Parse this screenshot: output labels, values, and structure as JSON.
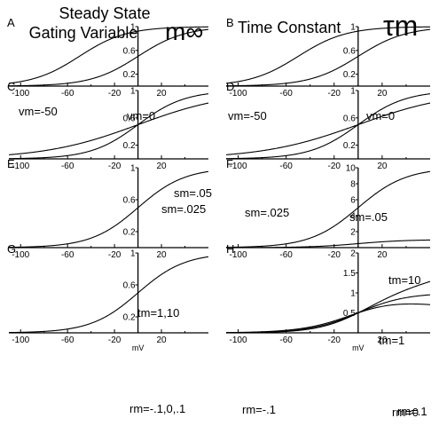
{
  "headers": {
    "left_title_line1": "Steady State",
    "left_title_line2": "Gating Variable",
    "left_symbol": "m∞",
    "right_title": "Time Constant",
    "right_symbol": "τm"
  },
  "x_unit": "mV",
  "chart_data": [
    {
      "panel": "A",
      "type": "line",
      "quantity": "m_inf",
      "xlim": [
        -110,
        60
      ],
      "ylim": [
        0,
        1
      ],
      "xticks": [
        -100,
        -60,
        -20,
        20
      ],
      "yticks": [
        0.2,
        0.6,
        1
      ],
      "ytick_labels": [
        "0.2",
        "0.6",
        "1"
      ],
      "series": [
        {
          "name": "vm=-50",
          "vm": -50,
          "sm": 0.05
        },
        {
          "name": "vm=0",
          "vm": 0,
          "sm": 0.05
        }
      ],
      "labels": [
        {
          "text": "vm=-50"
        },
        {
          "text": "vm=0"
        }
      ]
    },
    {
      "panel": "B",
      "type": "line",
      "quantity": "tau_m",
      "xlim": [
        -110,
        60
      ],
      "ylim": [
        0,
        1
      ],
      "xticks": [
        -100,
        -60,
        -20,
        20
      ],
      "yticks": [
        0.2,
        0.6,
        1
      ],
      "ytick_labels": [
        "0.2",
        "0.6",
        "1"
      ],
      "series": [
        {
          "name": "vm=-50",
          "vm": -50,
          "sm": 0.05,
          "tm": 1,
          "rm": 0
        },
        {
          "name": "vm=0",
          "vm": 0,
          "sm": 0.05,
          "tm": 1,
          "rm": 0
        }
      ],
      "labels": [
        {
          "text": "vm=-50"
        },
        {
          "text": "vm=0"
        }
      ]
    },
    {
      "panel": "C",
      "type": "line",
      "quantity": "m_inf",
      "xlim": [
        -110,
        60
      ],
      "ylim": [
        0,
        1
      ],
      "xticks": [
        -100,
        -60,
        -20,
        20
      ],
      "yticks": [
        0.2,
        0.6,
        1
      ],
      "ytick_labels": [
        "0.2",
        "0.6",
        "1"
      ],
      "series": [
        {
          "name": "sm=.05",
          "vm": 0,
          "sm": 0.05
        },
        {
          "name": "sm=.025",
          "vm": 0,
          "sm": 0.025
        }
      ],
      "labels": [
        {
          "text": "sm=.05"
        },
        {
          "text": "sm=.025"
        }
      ]
    },
    {
      "panel": "D",
      "type": "line",
      "quantity": "tau_m",
      "xlim": [
        -110,
        60
      ],
      "ylim": [
        0,
        1
      ],
      "xticks": [
        -100,
        -60,
        -20,
        20
      ],
      "yticks": [
        0.2,
        0.6,
        1
      ],
      "ytick_labels": [
        "0.2",
        "0.6",
        "1"
      ],
      "series": [
        {
          "name": "sm=.025",
          "vm": 0,
          "sm": 0.025,
          "tm": 1,
          "rm": 0
        },
        {
          "name": "sm=.05",
          "vm": 0,
          "sm": 0.05,
          "tm": 1,
          "rm": 0
        }
      ],
      "labels": [
        {
          "text": "sm=.025"
        },
        {
          "text": "sm=.05"
        }
      ]
    },
    {
      "panel": "E",
      "type": "line",
      "quantity": "m_inf",
      "xlim": [
        -110,
        60
      ],
      "ylim": [
        0,
        1
      ],
      "xticks": [
        -100,
        -60,
        -20,
        20
      ],
      "yticks": [
        0.2,
        0.6,
        1
      ],
      "ytick_labels": [
        "0.2",
        "0.6",
        "1"
      ],
      "series": [
        {
          "name": "tm=1,10",
          "vm": 0,
          "sm": 0.05
        }
      ],
      "labels": [
        {
          "text": "tm=1,10"
        }
      ]
    },
    {
      "panel": "F",
      "type": "line",
      "quantity": "tau_m",
      "xlim": [
        -110,
        60
      ],
      "ylim": [
        0,
        10
      ],
      "xticks": [
        -100,
        -60,
        -20,
        20
      ],
      "yticks": [
        2,
        4,
        6,
        8,
        10
      ],
      "ytick_labels": [
        "2",
        "4",
        "6",
        "8",
        "10"
      ],
      "series": [
        {
          "name": "tm=10",
          "vm": 0,
          "sm": 0.05,
          "tm": 10,
          "rm": 0
        },
        {
          "name": "tm=1",
          "vm": 0,
          "sm": 0.05,
          "tm": 1,
          "rm": 0
        }
      ],
      "labels": [
        {
          "text": "tm=10"
        },
        {
          "text": "tm=1"
        }
      ]
    },
    {
      "panel": "G",
      "type": "line",
      "quantity": "m_inf",
      "xlim": [
        -110,
        60
      ],
      "ylim": [
        0,
        1
      ],
      "xticks": [
        -100,
        -60,
        -20,
        20
      ],
      "yticks": [
        0.2,
        0.6,
        1
      ],
      "ytick_labels": [
        "0.2",
        "0.6",
        "1"
      ],
      "xlabel": "mV",
      "series": [
        {
          "name": "rm=-.1,0,.1",
          "vm": 0,
          "sm": 0.05
        }
      ],
      "labels": [
        {
          "text": "rm=-.1,0,.1"
        }
      ]
    },
    {
      "panel": "H",
      "type": "line",
      "quantity": "tau_m",
      "xlim": [
        -110,
        60
      ],
      "ylim": [
        0,
        2
      ],
      "xticks": [
        -100,
        -60,
        -20,
        20
      ],
      "yticks": [
        0.5,
        1,
        1.5,
        2
      ],
      "ytick_labels": [
        "0.5",
        "1",
        "1.5",
        "2"
      ],
      "xlabel": "mV",
      "series": [
        {
          "name": "rm=-.1",
          "vm": 0,
          "sm": 0.05,
          "tm": 1,
          "rm": -0.1
        },
        {
          "name": "rm=.1",
          "vm": 0,
          "sm": 0.05,
          "tm": 1,
          "rm": 0.1
        },
        {
          "name": "rm=0",
          "vm": 0,
          "sm": 0.05,
          "tm": 1,
          "rm": 0
        }
      ],
      "labels": [
        {
          "text": "rm=-.1"
        },
        {
          "text": "rm=.1"
        },
        {
          "text": "rm=0"
        }
      ]
    }
  ]
}
